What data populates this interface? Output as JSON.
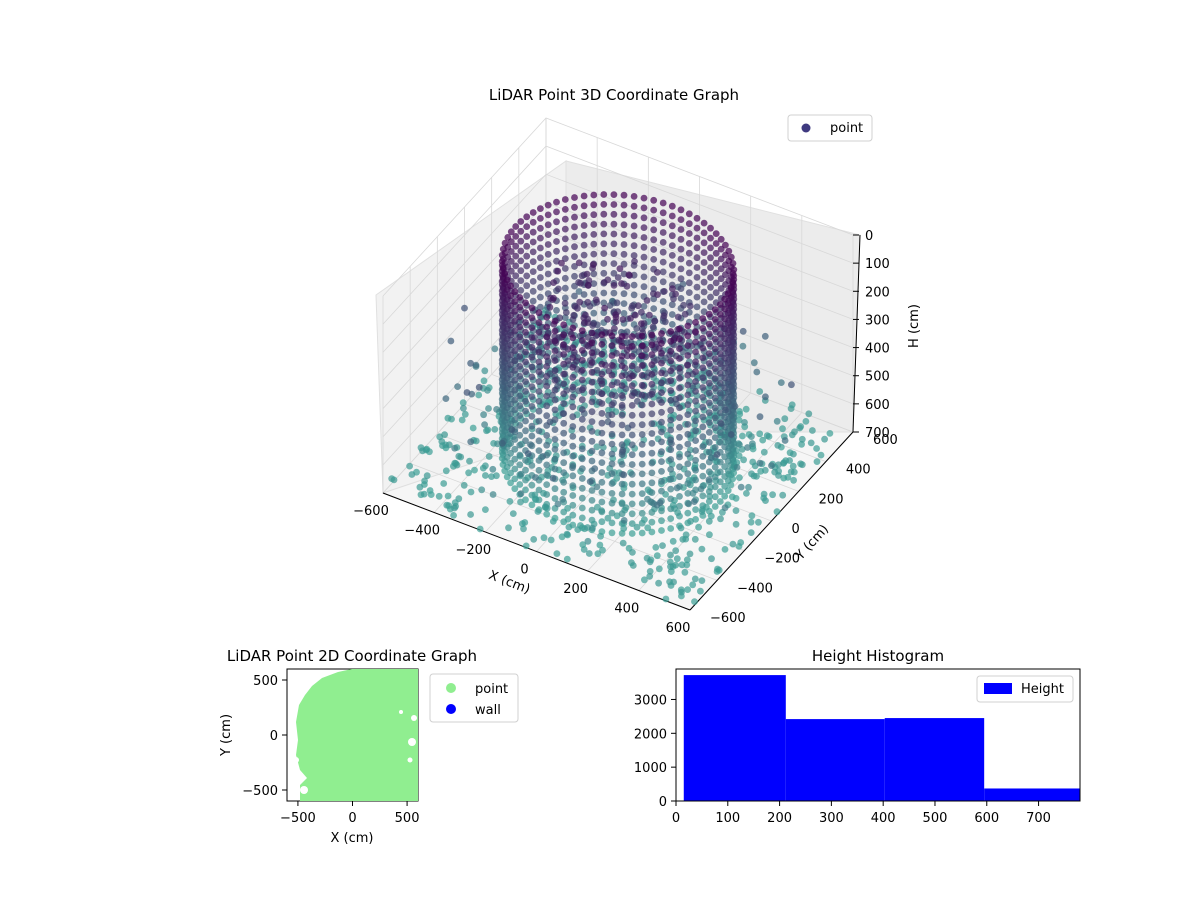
{
  "chart_data": [
    {
      "type": "scatter3d",
      "title": "LiDAR Point 3D Coordinate Graph",
      "xlabel": "X (cm)",
      "ylabel": "Y (cm)",
      "zlabel": "H (cm)",
      "xlim": [
        -600,
        600
      ],
      "ylim": [
        -600,
        600
      ],
      "zlim": [
        0,
        700
      ],
      "z_inverted": true,
      "xticks": [
        -600,
        -400,
        -200,
        0,
        200,
        400,
        600
      ],
      "yticks": [
        -600,
        -400,
        -200,
        0,
        200,
        400,
        600
      ],
      "zticks": [
        0,
        100,
        200,
        300,
        400,
        500,
        600,
        700
      ],
      "grid": true,
      "legend": {
        "position": "top-right",
        "entries": [
          {
            "name": "point",
            "color": "#3f3a80"
          }
        ]
      },
      "colormap": "viridis",
      "series": [
        {
          "name": "point",
          "description_of_shape": "cylindrical wall radius ~400 from H 0 to 700, inner structure, floor scatter at H 700",
          "points": [
            [
              400,
              0,
              0
            ],
            [
              0,
              400,
              0
            ],
            [
              -400,
              0,
              0
            ],
            [
              0,
              -400,
              0
            ],
            [
              400,
              0,
              300
            ],
            [
              0,
              400,
              300
            ],
            [
              -400,
              0,
              300
            ],
            [
              0,
              -400,
              300
            ],
            [
              400,
              0,
              700
            ],
            [
              0,
              400,
              700
            ],
            [
              -400,
              0,
              700
            ],
            [
              0,
              -400,
              700
            ],
            [
              -200,
              -200,
              700
            ],
            [
              200,
              200,
              700
            ],
            [
              -500,
              300,
              700
            ],
            [
              500,
              -300,
              700
            ]
          ]
        }
      ]
    },
    {
      "type": "scatter",
      "title": "LiDAR Point 2D Coordinate Graph",
      "xlabel": "X (cm)",
      "ylabel": "Y (cm)",
      "xlim": [
        -600,
        600
      ],
      "ylim": [
        -600,
        600
      ],
      "xticks": [
        -500,
        0,
        500
      ],
      "yticks": [
        -500,
        0,
        500
      ],
      "legend": {
        "position": "outside-right",
        "entries": [
          {
            "name": "point",
            "color": "#90ee90"
          },
          {
            "name": "wall",
            "color": "#0000ff"
          }
        ]
      }
    },
    {
      "type": "bar",
      "title": "Height Histogram",
      "xlim": [
        0,
        780
      ],
      "ylim": [
        0,
        3900
      ],
      "xticks": [
        0,
        100,
        200,
        300,
        400,
        500,
        600,
        700
      ],
      "yticks": [
        0,
        1000,
        2000,
        3000
      ],
      "legend": {
        "position": "top-right",
        "entries": [
          {
            "name": "Height",
            "color": "#0000ff"
          }
        ]
      },
      "bins": [
        {
          "start": 15,
          "end": 212,
          "count": 3720
        },
        {
          "start": 212,
          "end": 403,
          "count": 2420
        },
        {
          "start": 403,
          "end": 595,
          "count": 2450
        },
        {
          "start": 595,
          "end": 780,
          "count": 370
        }
      ]
    }
  ]
}
